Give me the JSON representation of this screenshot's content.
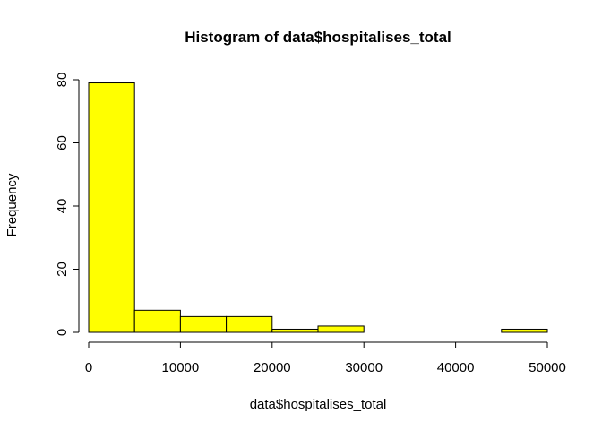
{
  "chart_data": {
    "type": "bar",
    "title": "Histogram of data$hospitalises_total",
    "xlabel": "data$hospitalises_total",
    "ylabel": "Frequency",
    "bins": [
      {
        "start": 0,
        "end": 5000,
        "count": 79
      },
      {
        "start": 5000,
        "end": 10000,
        "count": 7
      },
      {
        "start": 10000,
        "end": 15000,
        "count": 5
      },
      {
        "start": 15000,
        "end": 20000,
        "count": 5
      },
      {
        "start": 20000,
        "end": 25000,
        "count": 1
      },
      {
        "start": 25000,
        "end": 30000,
        "count": 2
      },
      {
        "start": 30000,
        "end": 35000,
        "count": 0
      },
      {
        "start": 35000,
        "end": 40000,
        "count": 0
      },
      {
        "start": 40000,
        "end": 45000,
        "count": 0
      },
      {
        "start": 45000,
        "end": 50000,
        "count": 1
      }
    ],
    "xticks": [
      0,
      10000,
      20000,
      30000,
      40000,
      50000
    ],
    "xtick_labels": [
      "0",
      "10000",
      "20000",
      "30000",
      "40000",
      "50000"
    ],
    "yticks": [
      0,
      20,
      40,
      60,
      80
    ],
    "ytick_labels": [
      "0",
      "20",
      "40",
      "60",
      "80"
    ],
    "xlim": [
      0,
      50000
    ],
    "ylim": [
      0,
      80
    ],
    "bar_color": "#FFFF00",
    "bar_edge_color": "#000000",
    "grid": false
  }
}
